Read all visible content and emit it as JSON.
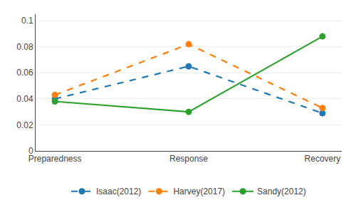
{
  "chart_data": {
    "type": "line",
    "categories": [
      "Preparedness",
      "Response",
      "Recovery"
    ],
    "series": [
      {
        "name": "Isaac(2012)",
        "values": [
          0.04,
          0.065,
          0.029
        ],
        "line_style": "dashed",
        "marker": "circle"
      },
      {
        "name": "Harvey(2017)",
        "values": [
          0.043,
          0.082,
          0.033
        ],
        "line_style": "dashed",
        "marker": "circle"
      },
      {
        "name": "Sandy(2012)",
        "values": [
          0.038,
          0.03,
          0.088
        ],
        "line_style": "solid",
        "marker": "circle"
      }
    ],
    "ylim": [
      0,
      0.105
    ],
    "yticks": [
      0,
      0.02,
      0.04,
      0.06,
      0.08,
      0.1
    ],
    "grid": true,
    "legend": "bottom"
  }
}
